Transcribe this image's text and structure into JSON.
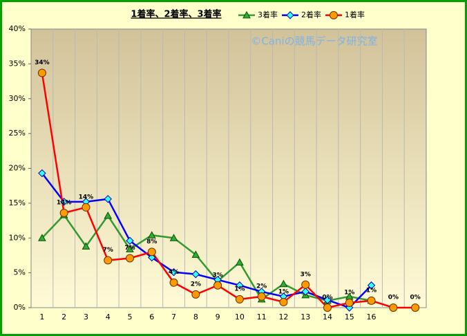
{
  "chart_data": {
    "type": "line",
    "title": "1着率、2着率、3着率",
    "watermark": "©Caniの競馬データ研究室",
    "categories": [
      "1",
      "2",
      "3",
      "4",
      "5",
      "6",
      "7",
      "8",
      "9",
      "10",
      "11",
      "12",
      "13",
      "14",
      "15",
      "16",
      null,
      null
    ],
    "ylim": [
      0,
      40
    ],
    "yticks": [
      {
        "value": 0,
        "label": "0%"
      },
      {
        "value": 5,
        "label": "5%"
      },
      {
        "value": 10,
        "label": "10%"
      },
      {
        "value": 15,
        "label": "15%"
      },
      {
        "value": 20,
        "label": "20%"
      },
      {
        "value": 25,
        "label": "25%"
      },
      {
        "value": 30,
        "label": "30%"
      },
      {
        "value": 35,
        "label": "35%"
      },
      {
        "value": 40,
        "label": "40%"
      }
    ],
    "series": [
      {
        "name": "3着率",
        "color": "#339933",
        "marker": "triangle",
        "values": [
          10,
          13.3,
          8.8,
          13.2,
          8.4,
          10.4,
          10,
          7.6,
          3.8,
          6.5,
          1.2,
          3.4,
          1.8,
          1.0,
          1.6,
          1.0,
          null,
          null
        ]
      },
      {
        "name": "2着率",
        "color": "#0000ff",
        "marker": "diamond",
        "values": [
          19.3,
          15.2,
          15.2,
          15.6,
          9.6,
          7.2,
          5.1,
          4.8,
          4.0,
          3.2,
          2.3,
          1.6,
          2.3,
          1.1,
          0,
          3.2,
          null,
          null
        ]
      },
      {
        "name": "1着率",
        "color": "#ff0000",
        "marker": "circle",
        "values": [
          33.7,
          13.6,
          14.4,
          6.8,
          7.1,
          8.0,
          3.6,
          1.9,
          3.2,
          1.2,
          1.6,
          0.8,
          3.3,
          0,
          0.7,
          1.0,
          0,
          0
        ],
        "value_labels": [
          "34%",
          "14%",
          "14%",
          "7%",
          "7%",
          "8%",
          "4%",
          "2%",
          "3%",
          "1%",
          "2%",
          "1%",
          "3%",
          "0%",
          "1%",
          "1%",
          "0%",
          "0%"
        ]
      }
    ]
  }
}
